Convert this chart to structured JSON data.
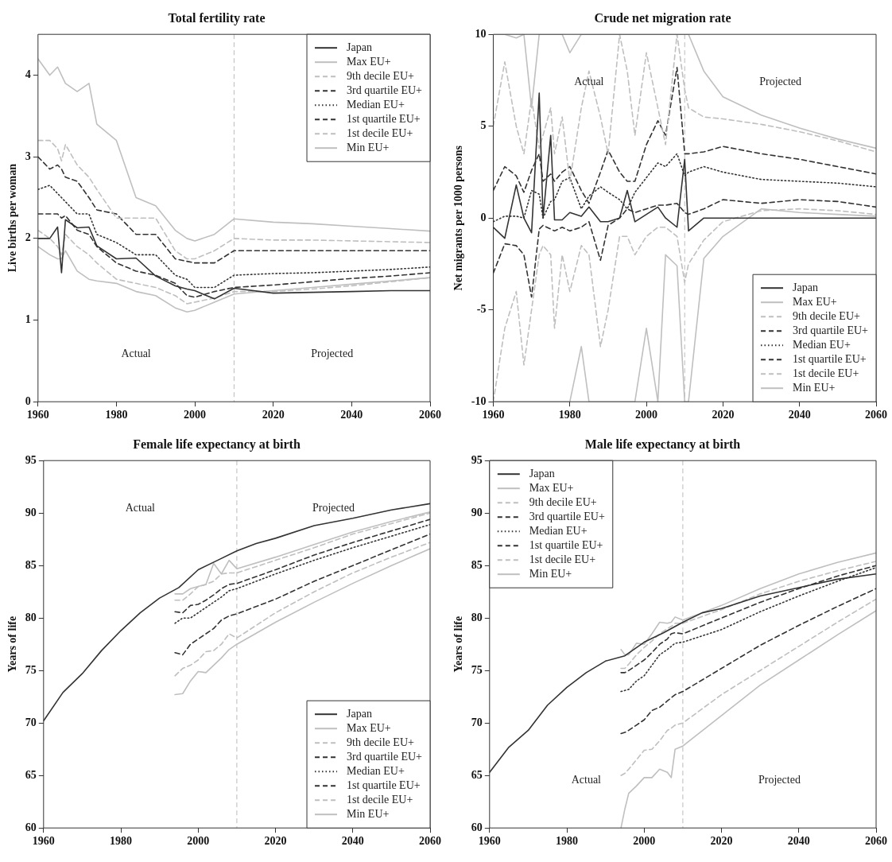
{
  "chart_data": [
    {
      "type": "line",
      "title": "Total fertility rate",
      "ylabel": "Live births per woman",
      "xlim": [
        1960,
        2060
      ],
      "xticks": [
        1960,
        1980,
        2000,
        2020,
        2040,
        2060
      ],
      "ylim": [
        0,
        4.5
      ],
      "yticks": [
        0,
        1,
        2,
        3,
        4
      ],
      "legend": "top right",
      "marker": "none",
      "x": [
        1960,
        1963,
        1965,
        1966,
        1967,
        1970,
        1973,
        1975,
        1980,
        1985,
        1990,
        1995,
        1998,
        2000,
        2005,
        2010,
        2020,
        2030,
        2040,
        2050,
        2060
      ],
      "ref_lines": [
        {
          "axis": "x",
          "value": 2010,
          "color": "#bbbbbb",
          "line_style": "dashed"
        }
      ],
      "annotations": [
        "Actual",
        "Projected"
      ],
      "series": [
        {
          "name": "Japan",
          "color": "#333333",
          "line_style": "solid",
          "values": [
            2.0,
            2.0,
            2.14,
            1.58,
            2.23,
            2.13,
            2.14,
            1.91,
            1.75,
            1.76,
            1.54,
            1.42,
            1.38,
            1.36,
            1.26,
            1.39,
            1.33,
            1.34,
            1.35,
            1.36,
            1.36
          ]
        },
        {
          "name": "Max EU+",
          "color": "#bfbfbf",
          "line_style": "solid",
          "values": [
            4.2,
            4.0,
            4.1,
            4.0,
            3.9,
            3.8,
            3.9,
            3.4,
            3.2,
            2.5,
            2.4,
            2.1,
            2.0,
            1.97,
            2.05,
            2.24,
            2.2,
            2.18,
            2.15,
            2.12,
            2.09
          ]
        },
        {
          "name": "9th decile EU+",
          "color": "#bfbfbf",
          "line_style": "dashed",
          "values": [
            3.2,
            3.2,
            3.1,
            2.95,
            3.15,
            2.9,
            2.75,
            2.6,
            2.25,
            2.25,
            2.25,
            1.85,
            1.75,
            1.75,
            1.85,
            2.0,
            1.98,
            1.98,
            1.97,
            1.96,
            1.95
          ]
        },
        {
          "name": "3rd quartile EU+",
          "color": "#333333",
          "line_style": "dashed",
          "values": [
            3.0,
            2.85,
            2.9,
            2.85,
            2.75,
            2.7,
            2.5,
            2.35,
            2.3,
            2.05,
            2.05,
            1.75,
            1.72,
            1.7,
            1.7,
            1.85,
            1.85,
            1.85,
            1.85,
            1.85,
            1.85
          ]
        },
        {
          "name": "Median EU+",
          "color": "#333333",
          "line_style": "dotted",
          "values": [
            2.6,
            2.65,
            2.55,
            2.5,
            2.45,
            2.3,
            2.3,
            2.05,
            1.95,
            1.8,
            1.8,
            1.55,
            1.5,
            1.4,
            1.4,
            1.55,
            1.57,
            1.58,
            1.6,
            1.62,
            1.65
          ]
        },
        {
          "name": "1st quartile EU+",
          "color": "#333333",
          "line_style": "dashed",
          "values": [
            2.3,
            2.3,
            2.3,
            2.25,
            2.28,
            2.1,
            2.05,
            1.9,
            1.7,
            1.6,
            1.55,
            1.45,
            1.3,
            1.28,
            1.35,
            1.4,
            1.43,
            1.47,
            1.51,
            1.54,
            1.58
          ]
        },
        {
          "name": "1st decile EU+",
          "color": "#bfbfbf",
          "line_style": "dashed",
          "values": [
            2.1,
            2.0,
            1.9,
            1.8,
            2.05,
            1.9,
            1.8,
            1.7,
            1.5,
            1.45,
            1.4,
            1.3,
            1.2,
            1.22,
            1.27,
            1.35,
            1.35,
            1.38,
            1.42,
            1.47,
            1.52
          ]
        },
        {
          "name": "Min EU+",
          "color": "#bfbfbf",
          "line_style": "solid",
          "values": [
            1.9,
            1.8,
            1.75,
            1.75,
            1.85,
            1.6,
            1.5,
            1.48,
            1.45,
            1.35,
            1.3,
            1.15,
            1.1,
            1.12,
            1.22,
            1.32,
            1.36,
            1.4,
            1.44,
            1.48,
            1.52
          ]
        }
      ]
    },
    {
      "type": "line",
      "title": "Crude net migration rate",
      "ylabel": "Net migrants per 1000 persons",
      "xlim": [
        1960,
        2060
      ],
      "xticks": [
        1960,
        1980,
        2000,
        2020,
        2040,
        2060
      ],
      "ylim": [
        -10,
        10
      ],
      "yticks": [
        -10,
        -5,
        0,
        5,
        10
      ],
      "legend": "bottom right",
      "marker": "none",
      "x": [
        1960,
        1963,
        1966,
        1968,
        1970,
        1972,
        1973,
        1975,
        1976,
        1978,
        1980,
        1983,
        1985,
        1988,
        1990,
        1993,
        1995,
        1997,
        2000,
        2003,
        2005,
        2008,
        2010,
        2011,
        2015,
        2020,
        2030,
        2040,
        2050,
        2060
      ],
      "ref_lines": [
        {
          "axis": "x",
          "value": 2010,
          "color": "#bbbbbb",
          "line_style": "dashed"
        }
      ],
      "annotations": [
        "Actual",
        "Projected"
      ],
      "series": [
        {
          "name": "Japan",
          "color": "#333333",
          "line_style": "solid",
          "values": [
            -0.5,
            -1.1,
            1.8,
            0.0,
            -0.8,
            6.8,
            0.0,
            4.5,
            -0.1,
            -0.1,
            0.3,
            0.1,
            0.6,
            -0.2,
            -0.2,
            0.0,
            1.5,
            -0.2,
            0.2,
            0.6,
            0.0,
            -0.5,
            3.2,
            -0.7,
            0.0,
            0.0,
            0.0,
            0.0,
            0.0,
            0.0
          ]
        },
        {
          "name": "Max EU+",
          "color": "#bfbfbf",
          "line_style": "solid",
          "values": [
            10,
            10,
            9.8,
            10,
            6.0,
            10,
            10,
            10,
            10,
            10,
            9.0,
            10,
            10,
            10,
            10,
            10,
            10,
            10,
            10,
            10,
            10,
            10,
            10,
            10,
            8.0,
            6.6,
            5.6,
            4.9,
            4.3,
            3.8
          ]
        },
        {
          "name": "9th decile EU+",
          "color": "#bfbfbf",
          "line_style": "dashed",
          "values": [
            5.0,
            8.5,
            5.0,
            3.5,
            6.5,
            3.8,
            4.5,
            6.0,
            3.5,
            5.5,
            2.0,
            6.0,
            8.0,
            5.5,
            3.5,
            10,
            8.0,
            4.5,
            9.0,
            6.0,
            4.0,
            10,
            7.0,
            6.0,
            5.5,
            5.4,
            5.1,
            4.7,
            4.2,
            3.6
          ]
        },
        {
          "name": "3rd quartile EU+",
          "color": "#333333",
          "line_style": "dashed",
          "values": [
            1.5,
            2.8,
            2.3,
            1.4,
            2.6,
            3.5,
            2.0,
            2.4,
            2.0,
            2.5,
            2.8,
            1.5,
            0.8,
            2.5,
            3.7,
            2.5,
            2.0,
            2.0,
            4.0,
            5.3,
            4.5,
            8.2,
            3.5,
            3.5,
            3.6,
            3.9,
            3.5,
            3.2,
            2.8,
            2.4
          ]
        },
        {
          "name": "Median EU+",
          "color": "#333333",
          "line_style": "dotted",
          "values": [
            -0.2,
            0.1,
            0.1,
            0.0,
            1.5,
            1.3,
            0.0,
            0.9,
            1.0,
            2.0,
            2.2,
            0.5,
            1.2,
            1.7,
            1.4,
            1.0,
            0.5,
            1.4,
            2.2,
            3.0,
            2.8,
            3.5,
            2.3,
            2.5,
            2.8,
            2.5,
            2.1,
            2.0,
            1.9,
            1.7
          ]
        },
        {
          "name": "1st quartile EU+",
          "color": "#333333",
          "line_style": "dashed",
          "values": [
            -3.0,
            -1.4,
            -1.5,
            -2.0,
            -4.3,
            -0.6,
            -0.4,
            -0.6,
            -0.7,
            -0.5,
            -0.7,
            -0.5,
            -0.2,
            -2.3,
            -0.4,
            0.0,
            0.5,
            0.3,
            0.5,
            0.7,
            0.7,
            0.8,
            0.3,
            0.2,
            0.5,
            1.0,
            0.8,
            1.0,
            0.9,
            0.6
          ]
        },
        {
          "name": "1st decile EU+",
          "color": "#bfbfbf",
          "line_style": "dashed",
          "values": [
            -10,
            -6.0,
            -4.0,
            -8.0,
            -5.0,
            -2.0,
            -1.5,
            -2.0,
            -6.0,
            -2.0,
            -4.0,
            -1.5,
            -2.0,
            -7.0,
            -5.0,
            -1.0,
            -1.0,
            -2.0,
            -1.0,
            -0.5,
            -0.5,
            -1.0,
            -3.5,
            -2.5,
            -1.2,
            -0.2,
            0.4,
            0.5,
            0.4,
            0.2
          ]
        },
        {
          "name": "Min EU+",
          "color": "#bfbfbf",
          "line_style": "solid",
          "values": [
            -10,
            -10,
            -10,
            -10,
            -10,
            -10,
            -10,
            -10,
            -10,
            -10,
            -10,
            -7.0,
            -10,
            -10,
            -10,
            -10,
            -10,
            -10,
            -6.0,
            -10,
            -2.0,
            -2.6,
            -10,
            -10,
            -2.2,
            -1.0,
            0.5,
            0.3,
            0.2,
            0.1
          ]
        }
      ]
    },
    {
      "type": "line",
      "title": "Female life expectancy at birth",
      "ylabel": "Years of life",
      "xlim": [
        1960,
        2060
      ],
      "xticks": [
        1960,
        1980,
        2000,
        2020,
        2040,
        2060
      ],
      "ylim": [
        60,
        95
      ],
      "yticks": [
        60,
        65,
        70,
        75,
        80,
        85,
        90,
        95
      ],
      "legend": "bottom right",
      "marker": "none",
      "x": [
        1994,
        1996,
        1998,
        2000,
        2002,
        2004,
        2006,
        2008,
        2010,
        2020,
        2030,
        2040,
        2050,
        2060
      ],
      "ref_lines": [
        {
          "axis": "x",
          "value": 2010,
          "color": "#bbbbbb",
          "line_style": "dashed"
        }
      ],
      "annotations": [
        "Actual",
        "Projected"
      ],
      "series": [
        {
          "name": "Japan",
          "color": "#333333",
          "line_style": "solid",
          "x": [
            1960,
            1965,
            1970,
            1975,
            1980,
            1985,
            1990,
            1995,
            2000,
            2005,
            2010,
            2015,
            2020,
            2030,
            2040,
            2050,
            2060
          ],
          "values": [
            70.2,
            72.9,
            74.7,
            76.9,
            78.8,
            80.5,
            81.9,
            82.9,
            84.6,
            85.5,
            86.4,
            87.1,
            87.6,
            88.8,
            89.5,
            90.3,
            90.9
          ]
        },
        {
          "name": "Max EU+",
          "color": "#bfbfbf",
          "line_style": "solid",
          "values": [
            82.3,
            82.3,
            82.8,
            83.0,
            83.2,
            85.2,
            84.2,
            85.5,
            84.7,
            85.8,
            87.0,
            88.2,
            89.2,
            90.1
          ]
        },
        {
          "name": "9th decile EU+",
          "color": "#bfbfbf",
          "line_style": "dashed",
          "values": [
            81.7,
            81.7,
            82.3,
            83.0,
            83.2,
            83.5,
            84.2,
            84.3,
            84.3,
            85.5,
            86.7,
            88.0,
            89.0,
            90.0
          ]
        },
        {
          "name": "3rd quartile EU+",
          "color": "#333333",
          "line_style": "dashed",
          "values": [
            80.6,
            80.5,
            81.2,
            81.3,
            81.7,
            82.2,
            82.8,
            83.2,
            83.3,
            84.6,
            86.0,
            87.2,
            88.3,
            89.4
          ]
        },
        {
          "name": "Median EU+",
          "color": "#333333",
          "line_style": "dotted",
          "values": [
            79.5,
            80.0,
            80.0,
            80.5,
            81.0,
            81.5,
            82.0,
            82.6,
            82.8,
            84.2,
            85.5,
            86.7,
            87.8,
            88.9
          ]
        },
        {
          "name": "1st quartile EU+",
          "color": "#333333",
          "line_style": "dashed",
          "values": [
            76.7,
            76.5,
            77.5,
            78.0,
            78.5,
            79.0,
            79.8,
            80.2,
            80.4,
            81.8,
            83.5,
            85.0,
            86.5,
            88.0
          ]
        },
        {
          "name": "1st decile EU+",
          "color": "#bfbfbf",
          "line_style": "dashed",
          "values": [
            74.5,
            75.2,
            75.5,
            76.0,
            76.8,
            76.9,
            77.5,
            78.5,
            78.1,
            80.5,
            82.5,
            84.3,
            85.8,
            87.2
          ]
        },
        {
          "name": "Min EU+",
          "color": "#bfbfbf",
          "line_style": "solid",
          "values": [
            72.7,
            72.8,
            74.0,
            74.9,
            74.8,
            75.5,
            76.2,
            77.0,
            77.5,
            79.6,
            81.5,
            83.3,
            85.0,
            86.6
          ]
        }
      ]
    },
    {
      "type": "line",
      "title": "Male life expectancy at birth",
      "ylabel": "Years of life",
      "xlim": [
        1960,
        2060
      ],
      "xticks": [
        1960,
        1980,
        2000,
        2020,
        2040,
        2060
      ],
      "ylim": [
        60,
        95
      ],
      "yticks": [
        60,
        65,
        70,
        75,
        80,
        85,
        90,
        95
      ],
      "legend": "top left",
      "marker": "none",
      "x": [
        1994,
        1995,
        1996,
        1998,
        2000,
        2002,
        2004,
        2006,
        2007,
        2008,
        2010,
        2020,
        2030,
        2040,
        2050,
        2060
      ],
      "ref_lines": [
        {
          "axis": "x",
          "value": 2010,
          "color": "#bbbbbb",
          "line_style": "dashed"
        }
      ],
      "annotations": [
        "Actual",
        "Projected"
      ],
      "series": [
        {
          "name": "Japan",
          "color": "#333333",
          "line_style": "solid",
          "x": [
            1960,
            1965,
            1970,
            1975,
            1980,
            1985,
            1990,
            1995,
            2000,
            2005,
            2010,
            2015,
            2020,
            2030,
            2040,
            2050,
            2060
          ],
          "values": [
            65.3,
            67.7,
            69.3,
            71.7,
            73.4,
            74.8,
            75.9,
            76.4,
            77.7,
            78.6,
            79.6,
            80.5,
            80.9,
            82.1,
            82.9,
            83.7,
            84.2
          ]
        },
        {
          "name": "Max EU+",
          "color": "#bfbfbf",
          "line_style": "solid",
          "values": [
            77.0,
            76.5,
            76.5,
            77.6,
            77.5,
            78.5,
            79.6,
            79.5,
            79.6,
            80.1,
            79.8,
            81.2,
            82.8,
            84.2,
            85.3,
            86.2
          ]
        },
        {
          "name": "9th decile EU+",
          "color": "#bfbfbf",
          "line_style": "dashed",
          "values": [
            75.2,
            75.2,
            75.6,
            76.5,
            77.2,
            77.8,
            78.5,
            79.0,
            79.2,
            79.5,
            79.5,
            80.8,
            82.3,
            83.5,
            84.5,
            85.4
          ]
        },
        {
          "name": "3rd quartile EU+",
          "color": "#333333",
          "line_style": "dashed",
          "values": [
            74.8,
            74.8,
            75.0,
            75.5,
            76.0,
            76.7,
            77.5,
            78.0,
            78.5,
            78.6,
            78.5,
            80.0,
            81.5,
            82.8,
            84.0,
            85.0
          ]
        },
        {
          "name": "Median EU+",
          "color": "#333333",
          "line_style": "dotted",
          "values": [
            73.0,
            73.1,
            73.2,
            74.0,
            74.5,
            75.5,
            76.5,
            77.0,
            77.3,
            77.6,
            77.7,
            78.9,
            80.6,
            82.1,
            83.5,
            84.8
          ]
        },
        {
          "name": "1st quartile EU+",
          "color": "#333333",
          "line_style": "dashed",
          "values": [
            69.0,
            69.1,
            69.3,
            69.8,
            70.3,
            71.2,
            71.5,
            72.1,
            72.4,
            72.7,
            73.0,
            75.2,
            77.4,
            79.3,
            81.1,
            82.8
          ]
        },
        {
          "name": "1st decile EU+",
          "color": "#bfbfbf",
          "line_style": "dashed",
          "values": [
            65.0,
            65.2,
            65.6,
            66.5,
            67.4,
            67.5,
            68.3,
            69.3,
            69.5,
            69.8,
            70.0,
            72.7,
            75.0,
            77.3,
            79.6,
            81.8
          ]
        },
        {
          "name": "Min EU+",
          "color": "#bfbfbf",
          "line_style": "solid",
          "values": [
            60.0,
            61.8,
            63.3,
            64.0,
            64.8,
            64.8,
            65.6,
            65.3,
            64.8,
            67.5,
            67.8,
            70.7,
            73.6,
            76.0,
            78.4,
            80.7
          ]
        }
      ]
    }
  ]
}
